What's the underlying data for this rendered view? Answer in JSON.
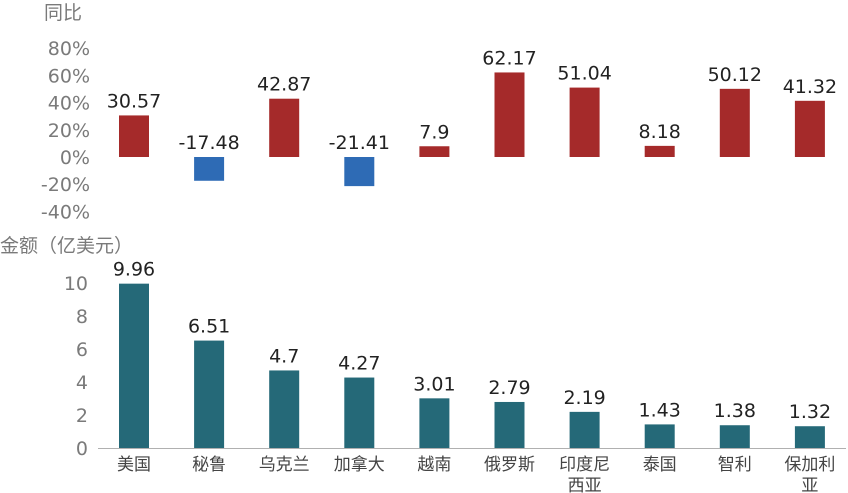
{
  "chart_data": [
    {
      "type": "bar",
      "ylabel": "同比",
      "categories": [
        "美国",
        "秘鲁",
        "乌克兰",
        "加拿大",
        "越南",
        "俄罗斯",
        "印度尼西亚",
        "泰国",
        "智利",
        "保加利亚"
      ],
      "values": [
        30.57,
        -17.48,
        42.87,
        -21.41,
        7.9,
        62.17,
        51.04,
        8.18,
        50.12,
        41.32
      ],
      "value_labels": [
        "30.57",
        "-17.48",
        "42.87",
        "-21.41",
        "7.9",
        "62.17",
        "51.04",
        "8.18",
        "50.12",
        "41.32"
      ],
      "yticks": [
        "80%",
        "60%",
        "40%",
        "20%",
        "0%",
        "-20%",
        "-40%"
      ],
      "ylim": [
        -40,
        80
      ],
      "colors": {
        "positive": "#a52a2a",
        "negative": "#2e6bb5"
      },
      "grid": false
    },
    {
      "type": "bar",
      "ylabel": "金额（亿美元）",
      "categories": [
        "美国",
        "秘鲁",
        "乌克兰",
        "加拿大",
        "越南",
        "俄罗斯",
        "印度尼西亚",
        "泰国",
        "智利",
        "保加利亚"
      ],
      "category_labels": [
        [
          "美国"
        ],
        [
          "秘鲁"
        ],
        [
          "乌克兰"
        ],
        [
          "加拿大"
        ],
        [
          "越南"
        ],
        [
          "俄罗斯"
        ],
        [
          "印度尼",
          "西亚"
        ],
        [
          "泰国"
        ],
        [
          "智利"
        ],
        [
          "保加利",
          "亚"
        ]
      ],
      "values": [
        9.96,
        6.51,
        4.7,
        4.27,
        3.01,
        2.79,
        2.19,
        1.43,
        1.38,
        1.32
      ],
      "value_labels": [
        "9.96",
        "6.51",
        "4.7",
        "4.27",
        "3.01",
        "2.79",
        "2.19",
        "1.43",
        "1.38",
        "1.32"
      ],
      "yticks": [
        "10",
        "8",
        "6",
        "4",
        "2",
        "0"
      ],
      "ylim": [
        0,
        10
      ],
      "color": "#256978",
      "grid": false
    }
  ]
}
